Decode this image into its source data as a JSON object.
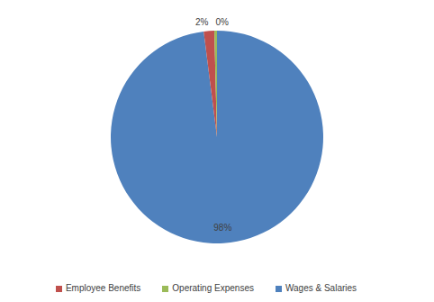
{
  "chart_data": {
    "type": "pie",
    "categories": [
      "Wages & Salaries",
      "Employee Benefits",
      "Operating Expenses"
    ],
    "values": [
      98,
      1.6,
      0.4
    ],
    "value_labels": [
      "98%",
      "2%",
      "0%"
    ],
    "colors": [
      "#4f81bd",
      "#c0504d",
      "#9bbb59"
    ],
    "data_labels": true,
    "legend": "bottom"
  }
}
